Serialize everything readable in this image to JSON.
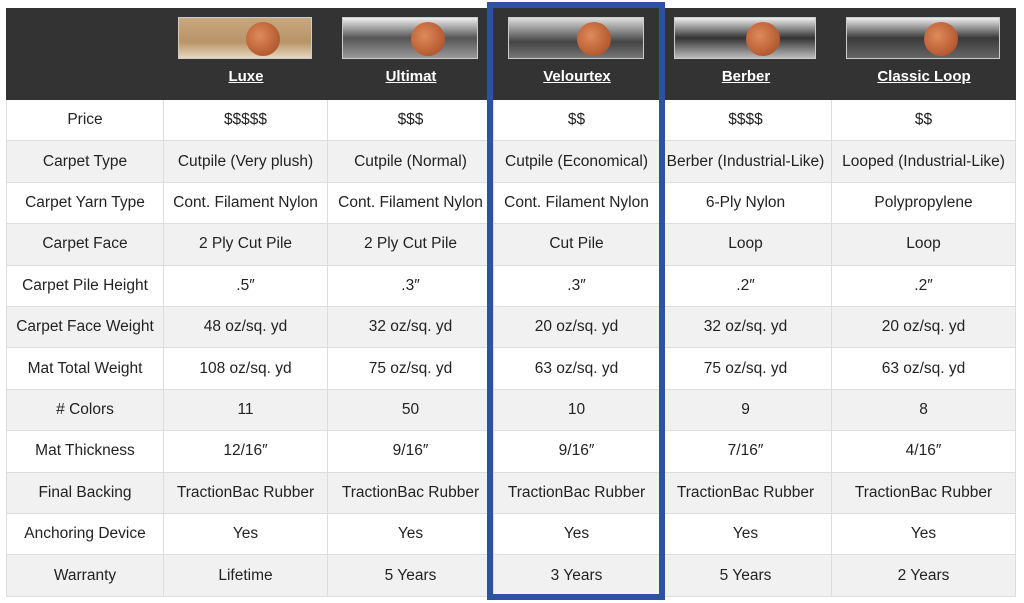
{
  "header": {
    "columns": [
      "Luxe",
      "Ultimat",
      "Velourtex",
      "Berber",
      "Classic Loop"
    ]
  },
  "table": {
    "rows": [
      {
        "label": "Price",
        "values": [
          "$$$$$",
          "$$$",
          "$$",
          "$$$$",
          "$$"
        ]
      },
      {
        "label": "Carpet Type",
        "values": [
          "Cutpile (Very plush)",
          "Cutpile (Normal)",
          "Cutpile (Economical)",
          "Berber (Industrial-Like)",
          "Looped (Industrial-Like)"
        ]
      },
      {
        "label": "Carpet Yarn Type",
        "values": [
          "Cont. Filament Nylon",
          "Cont. Filament Nylon",
          "Cont. Filament Nylon",
          "6-Ply Nylon",
          "Polypropylene"
        ]
      },
      {
        "label": "Carpet Face",
        "values": [
          "2 Ply Cut Pile",
          "2 Ply Cut Pile",
          "Cut Pile",
          "Loop",
          "Loop"
        ]
      },
      {
        "label": "Carpet Pile Height",
        "values": [
          ".5″",
          ".3″",
          ".3″",
          ".2″",
          ".2″"
        ]
      },
      {
        "label": "Carpet Face Weight",
        "values": [
          "48 oz/sq. yd",
          "32 oz/sq. yd",
          "20 oz/sq. yd",
          "32 oz/sq. yd",
          "20 oz/sq. yd"
        ]
      },
      {
        "label": "Mat Total Weight",
        "values": [
          "108 oz/sq. yd",
          "75 oz/sq. yd",
          "63 oz/sq. yd",
          "75 oz/sq. yd",
          "63 oz/sq. yd"
        ]
      },
      {
        "label": "# Colors",
        "values": [
          "11",
          "50",
          "10",
          "9",
          "8"
        ]
      },
      {
        "label": "Mat Thickness",
        "values": [
          "12/16″",
          "9/16″",
          "9/16″",
          "7/16″",
          "4/16″"
        ]
      },
      {
        "label": "Final Backing",
        "values": [
          "TractionBac Rubber",
          "TractionBac Rubber",
          "TractionBac Rubber",
          "TractionBac Rubber",
          "TractionBac Rubber"
        ]
      },
      {
        "label": "Anchoring Device",
        "values": [
          "Yes",
          "Yes",
          "Yes",
          "Yes",
          "Yes"
        ]
      },
      {
        "label": "Warranty",
        "values": [
          "Lifetime",
          "5 Years",
          "3 Years",
          "5 Years",
          "2 Years"
        ]
      }
    ]
  }
}
